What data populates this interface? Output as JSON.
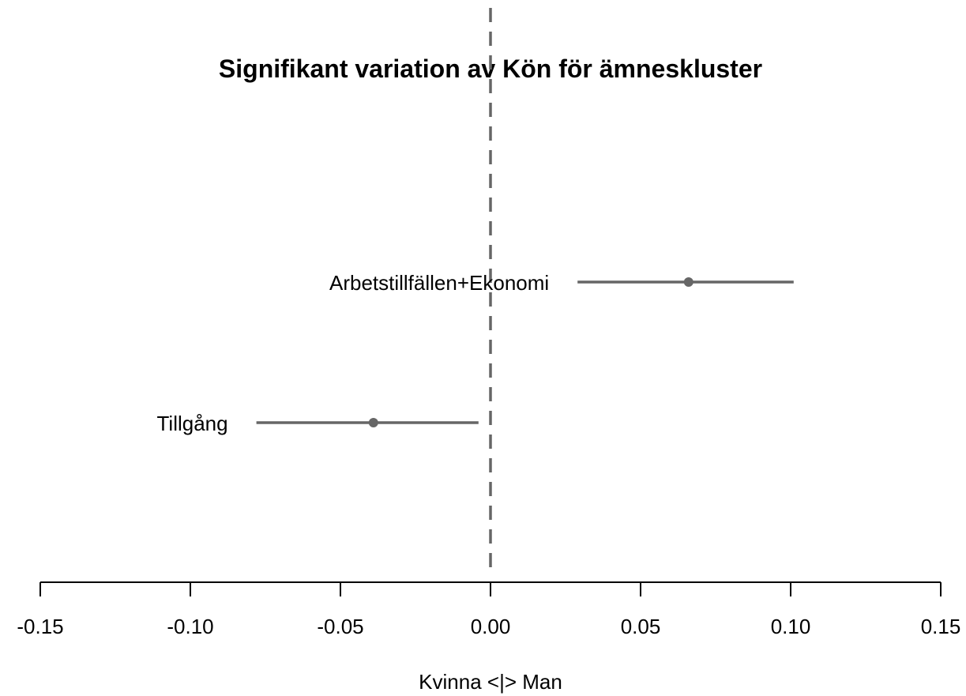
{
  "chart_data": {
    "type": "scatter",
    "title": "Signifikant variation av Kön för ämneskluster",
    "xlabel": "Kvinna <|> Man",
    "ylabel": "",
    "xlim": [
      -0.15,
      0.15
    ],
    "xticks": [
      -0.15,
      -0.1,
      -0.05,
      0.0,
      0.05,
      0.1,
      0.15
    ],
    "xtick_labels": [
      "-0.15",
      "-0.10",
      "-0.05",
      "0.00",
      "0.05",
      "0.10",
      "0.15"
    ],
    "reference_line": {
      "x": 0,
      "style": "dashed"
    },
    "points": [
      {
        "label": "Arbetstillfällen+Ekonomi",
        "estimate": 0.066,
        "lower": 0.029,
        "upper": 0.101
      },
      {
        "label": "Tillgång",
        "estimate": -0.039,
        "lower": -0.078,
        "upper": -0.004
      }
    ],
    "grid": false,
    "colors": {
      "points": "#666666",
      "reference_line": "#666666",
      "axis": "#000000"
    }
  }
}
